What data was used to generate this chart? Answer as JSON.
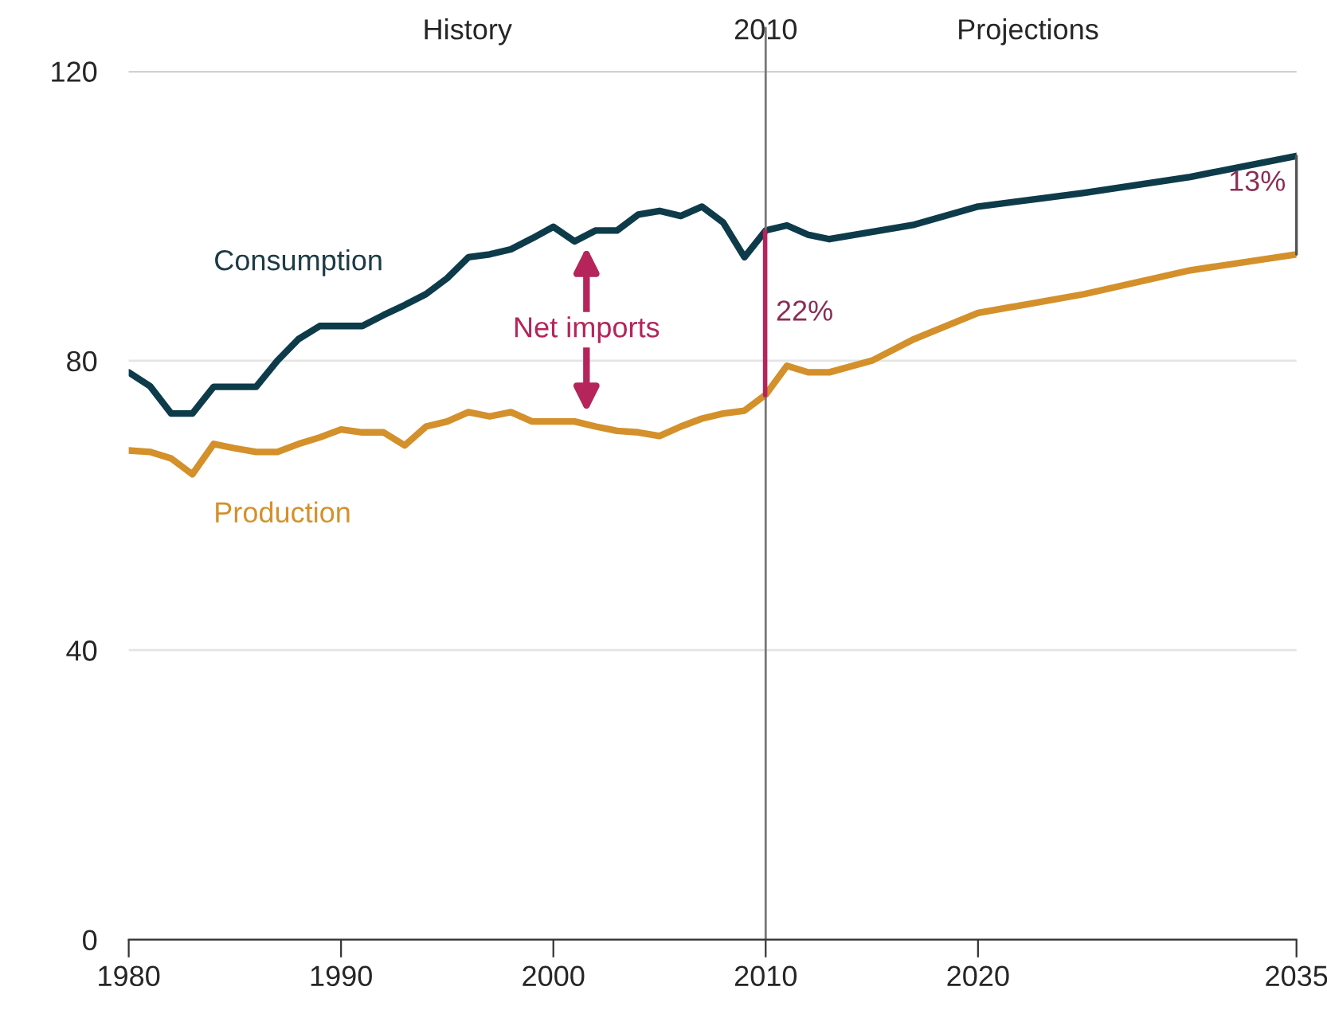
{
  "chart_data": {
    "type": "line",
    "x": [
      1980,
      1981,
      1982,
      1983,
      1984,
      1985,
      1986,
      1987,
      1988,
      1989,
      1990,
      1991,
      1992,
      1993,
      1994,
      1995,
      1996,
      1997,
      1998,
      1999,
      2000,
      2001,
      2002,
      2003,
      2004,
      2005,
      2006,
      2007,
      2008,
      2009,
      2010,
      2011,
      2012,
      2013,
      2015,
      2017,
      2020,
      2025,
      2030,
      2035
    ],
    "series": [
      {
        "name": "Consumption",
        "color": "#0d3b4a",
        "values": [
          78.4,
          76.5,
          72.7,
          72.7,
          76.4,
          76.4,
          76.4,
          80,
          83,
          84.8,
          84.8,
          84.8,
          86.3,
          87.7,
          89.2,
          91.4,
          94.3,
          94.7,
          95.4,
          96.9,
          98.5,
          96.5,
          98,
          98,
          100.2,
          100.7,
          100,
          101.3,
          99.1,
          94.3,
          98,
          98.7,
          97.4,
          96.8,
          97.8,
          98.8,
          101.3,
          103.2,
          105.4,
          108.3
        ]
      },
      {
        "name": "Production",
        "color": "#d4902a",
        "values": [
          67.6,
          67.4,
          66.5,
          64.3,
          68.5,
          67.9,
          67.4,
          67.4,
          68.5,
          69.4,
          70.5,
          70.1,
          70.1,
          68.3,
          70.9,
          71.6,
          72.9,
          72.3,
          72.9,
          71.6,
          71.6,
          71.6,
          70.9,
          70.3,
          70.1,
          69.6,
          70.9,
          72,
          72.7,
          73.1,
          75.3,
          79.3,
          78.4,
          78.4,
          80,
          83,
          86.6,
          89.2,
          92.5,
          94.7
        ]
      }
    ],
    "xlim": [
      1980,
      2035
    ],
    "xticks": [
      1980,
      1990,
      2000,
      2010,
      2020,
      2035
    ],
    "ylim": [
      0,
      120
    ],
    "yticks": [
      0,
      40,
      80,
      120
    ],
    "grid": "y",
    "marker": "none",
    "line_style": "solid",
    "ref_lines": [
      {
        "axis": "x",
        "value": 2010,
        "label": "2010",
        "color": "#777777"
      }
    ],
    "annotations": [
      "Net imports",
      "22%",
      "13%",
      "History",
      "Projections"
    ]
  }
}
